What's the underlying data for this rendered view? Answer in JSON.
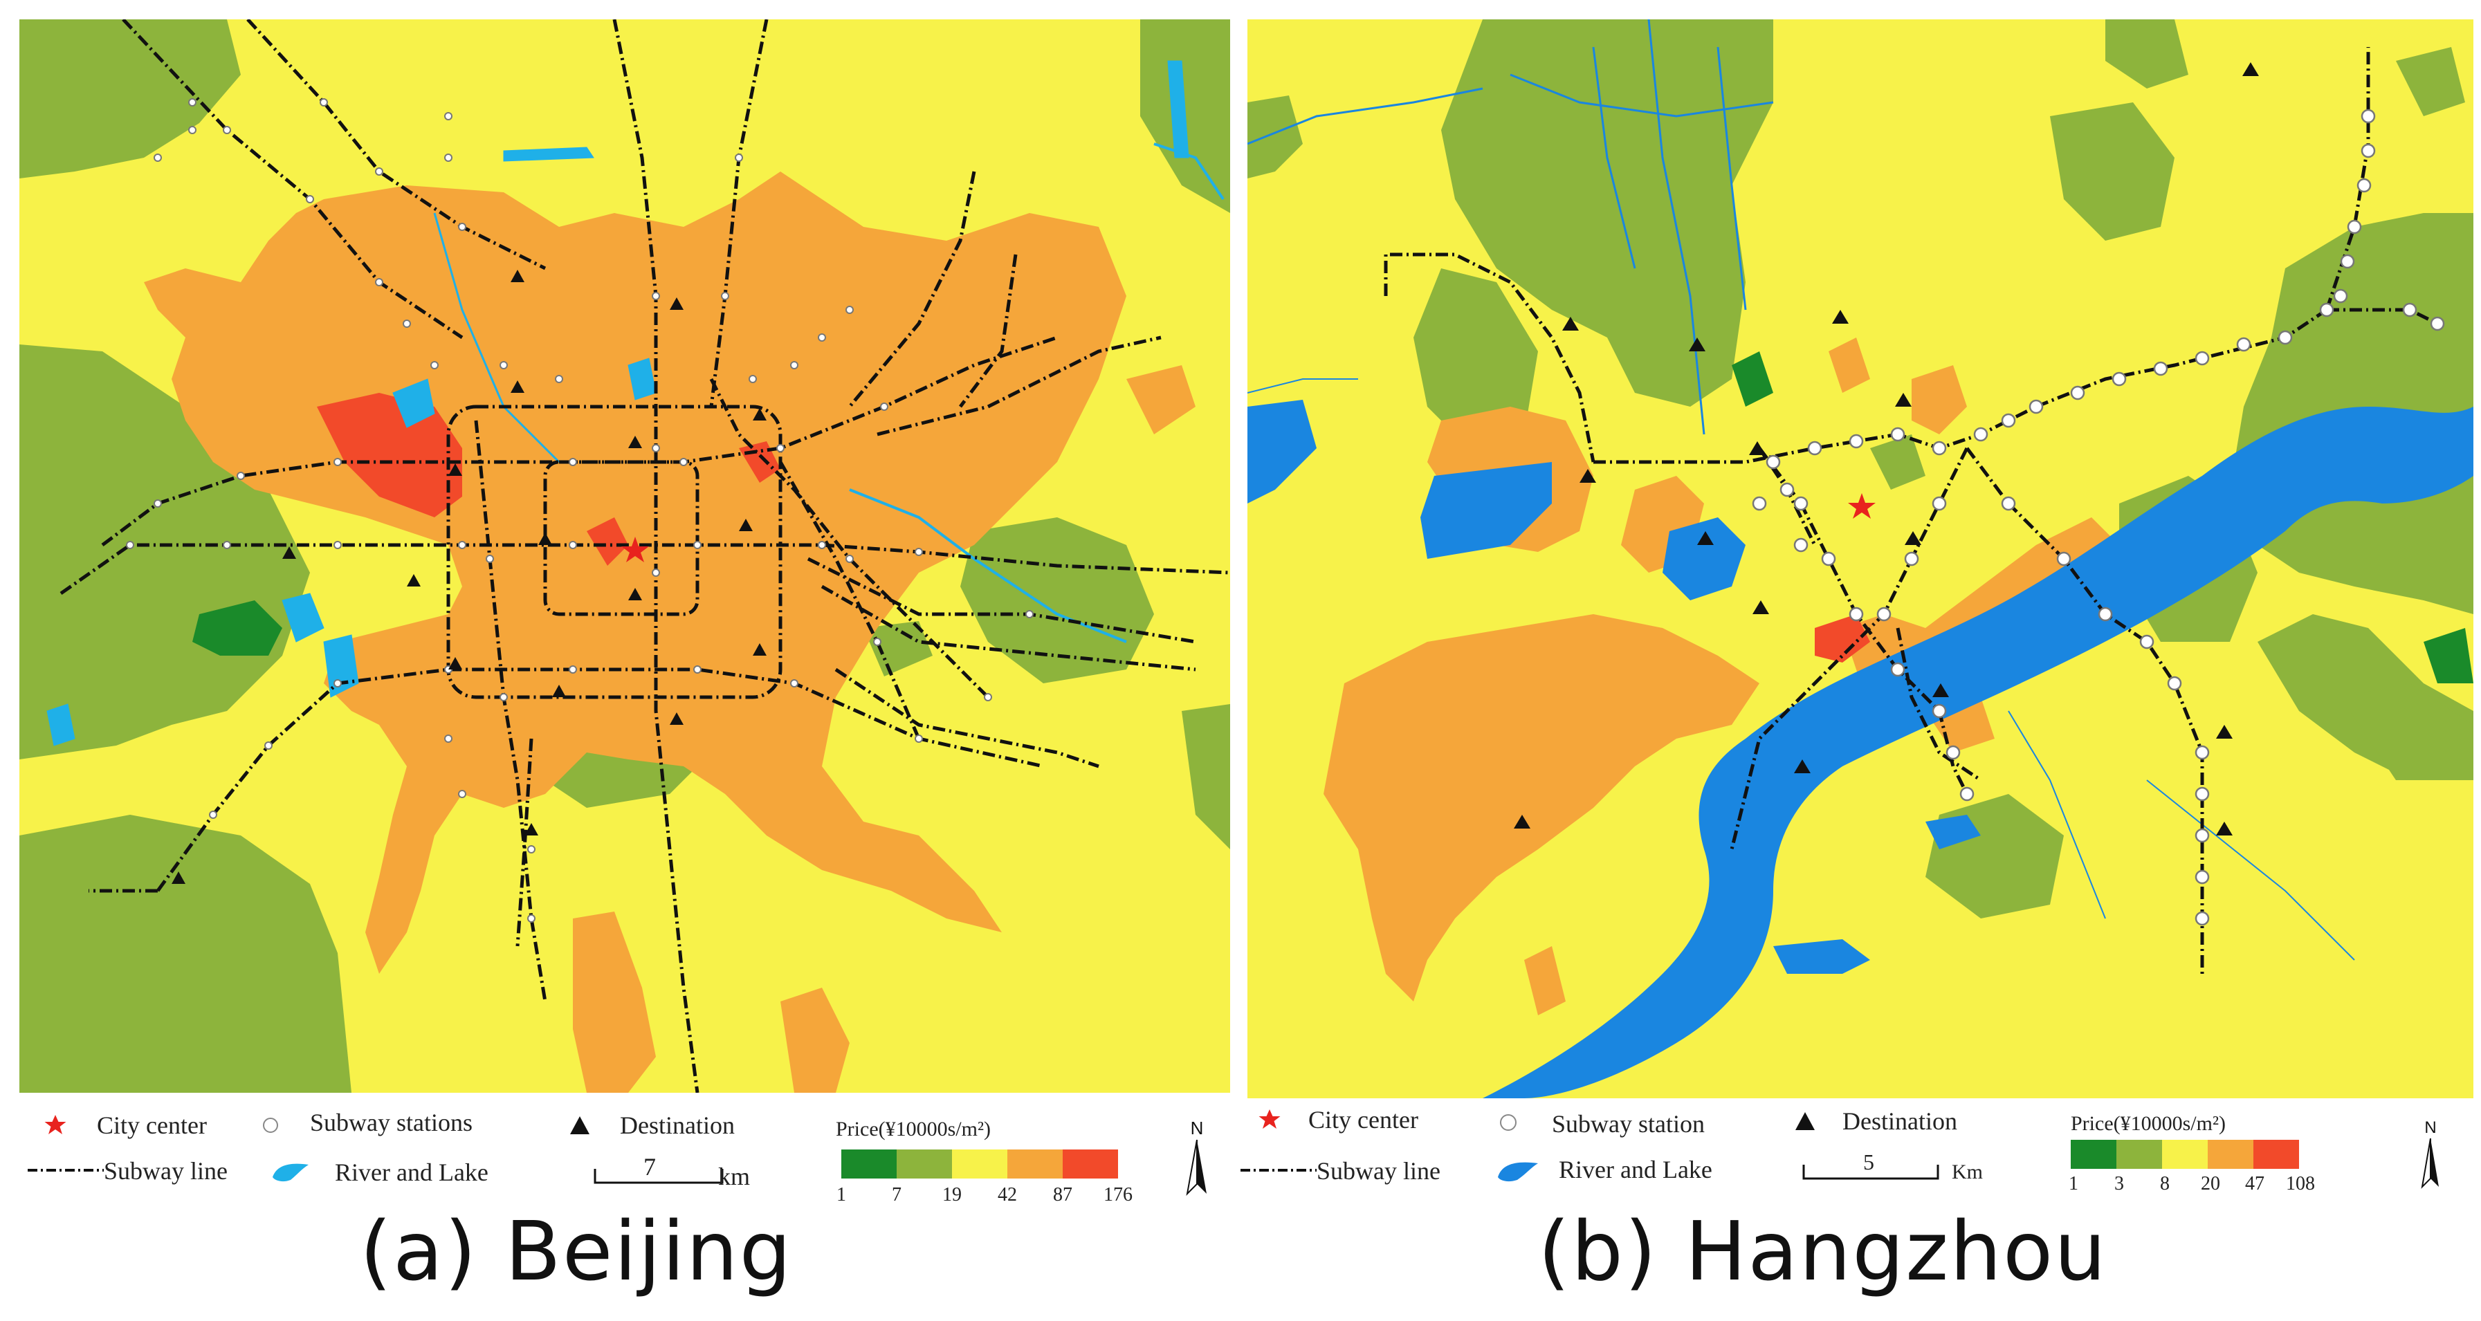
{
  "panels": {
    "beijing": {
      "caption": "(a) Beijing",
      "legend": {
        "city_center": "City center",
        "subway_stations": "Subway stations",
        "destination": "Destination",
        "subway_line": "Subway line",
        "river_lake": "River and Lake",
        "scale_value": "7",
        "scale_unit": "km",
        "price_title": "Price(¥10000s/m²)",
        "price_ticks": [
          "1",
          "7",
          "19",
          "42",
          "87",
          "176"
        ],
        "north": "N"
      }
    },
    "hangzhou": {
      "caption": "(b) Hangzhou",
      "legend": {
        "city_center": "City center",
        "subway_stations": "Subway station",
        "destination": "Destination",
        "subway_line": "Subway line",
        "river_lake": "River and Lake",
        "scale_value": "5",
        "scale_unit": "Km",
        "price_title": "Price(¥10000s/m²)",
        "price_ticks": [
          "1",
          "3",
          "8",
          "20",
          "47",
          "108"
        ],
        "north": "N"
      }
    }
  },
  "colors": {
    "price_classes": [
      "#1a8a2a",
      "#8db43c",
      "#f7f24a",
      "#f5a63a",
      "#f24a2a"
    ],
    "water": "#1a86e0",
    "water_beijing": "#1fb0e8",
    "subway_line": "#111111",
    "destination": "#111111",
    "city_center": "#e8231e"
  },
  "icons": {
    "city_center": "star-icon",
    "subway_station": "circle-icon",
    "destination": "triangle-icon",
    "north_arrow": "north-arrow-icon"
  }
}
